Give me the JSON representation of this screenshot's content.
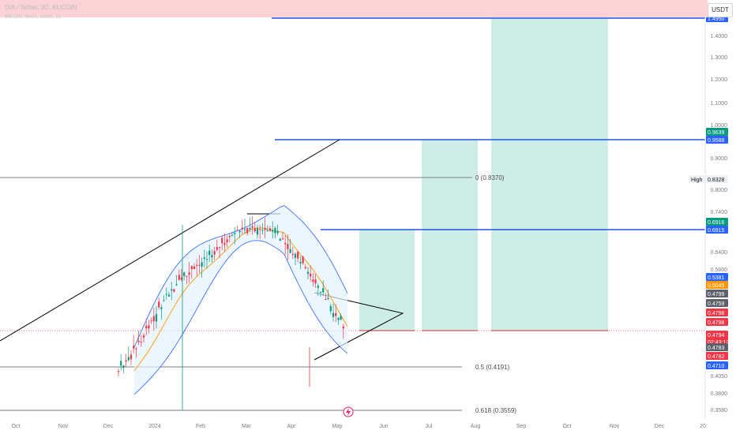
{
  "header": {
    "symbol_line": "DIA / Tether, 3D, KUCOIN",
    "indicator_line": "BB (20, SMA, close, 2)",
    "currency": "USDT"
  },
  "price_axis_ticks": [
    "1.4000",
    "1.3000",
    "1.2000",
    "1.1000",
    "1.0000",
    "0.9000",
    "0.8000",
    "0.7400",
    "0.6400",
    "0.5800",
    "0.4050",
    "0.3800",
    "0.3580"
  ],
  "time_axis": [
    "Oct",
    "Nov",
    "Dec",
    "2024",
    "Feb",
    "Mar",
    "Apr",
    "May",
    "Jun",
    "Jul",
    "Aug",
    "Sep",
    "Oct",
    "Nov",
    "Dec",
    "20"
  ],
  "price_labels": [
    {
      "text": "1.4950",
      "bg": "#2962ff",
      "fg": "#ffffff",
      "v": 1.495
    },
    {
      "text": "0.9639",
      "bg": "#089981",
      "fg": "#ffffff",
      "v": 0.9639
    },
    {
      "text": "0.9588",
      "bg": "#2962ff",
      "fg": "#ffffff",
      "v": 0.9588
    },
    {
      "text": "0.8328",
      "bg": "#eef0f3",
      "fg": "#131722",
      "v": 0.8328,
      "tag": "High"
    },
    {
      "text": "0.6916",
      "bg": "#089981",
      "fg": "#ffffff",
      "v": 0.6916
    },
    {
      "text": "0.6915",
      "bg": "#2962ff",
      "fg": "#ffffff",
      "v": 0.6915
    },
    {
      "text": "0.5381",
      "bg": "#2962ff",
      "fg": "#ffffff",
      "v": 0.5381
    },
    {
      "text": "0.5045",
      "bg": "#ff9800",
      "fg": "#ffffff",
      "v": 0.5045
    },
    {
      "text": "0.4799",
      "bg": "#5d606b",
      "fg": "#ffffff",
      "v": 0.4799
    },
    {
      "text": "0.4759",
      "bg": "#5d606b",
      "fg": "#ffffff",
      "v": 0.4759
    },
    {
      "text": "0.4798",
      "bg": "#f23645",
      "fg": "#ffffff",
      "v": 0.4798
    },
    {
      "text": "0.4798",
      "bg": "#f23645",
      "fg": "#ffffff",
      "v": 0.4798
    },
    {
      "text": "0.4794",
      "bg": "#f23645",
      "fg": "#ffffff",
      "v": 0.4794,
      "sub": "02:43:12"
    },
    {
      "text": "0.4783",
      "bg": "#5d606b",
      "fg": "#ffffff",
      "v": 0.4783
    },
    {
      "text": "0.4782",
      "bg": "#f23645",
      "fg": "#ffffff",
      "v": 0.4782
    },
    {
      "text": "0.4710",
      "bg": "#2962ff",
      "fg": "#ffffff",
      "v": 0.471
    }
  ],
  "fib_labels": [
    {
      "text": "0 (0.8370)",
      "v": 0.837
    },
    {
      "text": "0.5 (0.4191)",
      "v": 0.4191
    },
    {
      "text": "0.618 (0.3559)",
      "v": 0.3559
    }
  ],
  "colors": {
    "up": "#089981",
    "down": "#f23645",
    "target_line": "#1e53e5",
    "zone": "#b9e6dc",
    "band_fill": "#e3f2fd",
    "band_line": "#2962ff",
    "ma": "#ff9800"
  },
  "chart_data": {
    "type": "candlestick",
    "symbol": "DIA / Tether",
    "interval": "3D",
    "exchange": "KUCOIN",
    "targets": [
      0.6915,
      0.9588,
      1.495
    ],
    "entry": 0.4794,
    "fibonacci": [
      {
        "level": "0",
        "price": 0.837
      },
      {
        "level": "0.5",
        "price": 0.4191
      },
      {
        "level": "0.618",
        "price": 0.3559
      }
    ],
    "high": 0.8328,
    "last_price": 0.4794
  }
}
